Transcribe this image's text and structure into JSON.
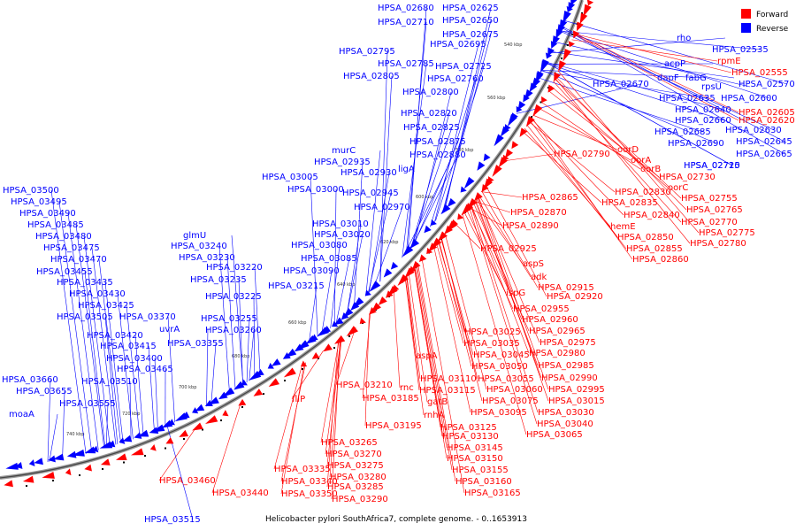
{
  "caption": "Helicobacter pylori SouthAfrica7, complete genome. - 0..1653913",
  "legend": [
    {
      "label": "Forward",
      "color": "#ff0000"
    },
    {
      "label": "Reverse",
      "color": "#0000ff"
    }
  ],
  "kbp_marks": [
    "540 kbp",
    "560 kbp",
    "580 kbp",
    "600 kbp",
    "620 kbp",
    "640 kbp",
    "660 kbp",
    "680 kbp",
    "700 kbp",
    "720 kbp",
    "740 kbp"
  ],
  "blue_labels": [
    {
      "text": "HPSA_02680"
    },
    {
      "text": "HPSA_02625"
    },
    {
      "text": "HPSA_02650"
    },
    {
      "text": "HPSA_02710"
    },
    {
      "text": "HPSA_02675"
    },
    {
      "text": "HPSA_02695"
    },
    {
      "text": "HPSA_02795"
    },
    {
      "text": "HPSA_02785"
    },
    {
      "text": "HPSA_02725"
    },
    {
      "text": "HPSA_02805"
    },
    {
      "text": "HPSA_02760"
    },
    {
      "text": "HPSA_02800"
    },
    {
      "text": "HPSA_02820"
    },
    {
      "text": "HPSA_02825"
    },
    {
      "text": "HPSA_02875"
    },
    {
      "text": "murC"
    },
    {
      "text": "HPSA_02880"
    },
    {
      "text": "HPSA_02935"
    },
    {
      "text": "HPSA_02930"
    },
    {
      "text": "ligA"
    },
    {
      "text": "HPSA_03005"
    },
    {
      "text": "HPSA_03000"
    },
    {
      "text": "HPSA_02945"
    },
    {
      "text": "HPSA_02970"
    },
    {
      "text": "HPSA_03010"
    },
    {
      "text": "HPSA_03020"
    },
    {
      "text": "HPSA_03080"
    },
    {
      "text": "HPSA_03085"
    },
    {
      "text": "HPSA_03090"
    },
    {
      "text": "glmU"
    },
    {
      "text": "HPSA_03240"
    },
    {
      "text": "HPSA_03230"
    },
    {
      "text": "HPSA_03220"
    },
    {
      "text": "HPSA_03235"
    },
    {
      "text": "HPSA_03215"
    },
    {
      "text": "HPSA_03225"
    },
    {
      "text": "HPSA_03255"
    },
    {
      "text": "HPSA_03260"
    },
    {
      "text": "uvrA"
    },
    {
      "text": "HPSA_03355"
    },
    {
      "text": "HPSA_03370"
    },
    {
      "text": "HPSA_03500"
    },
    {
      "text": "HPSA_03495"
    },
    {
      "text": "HPSA_03490"
    },
    {
      "text": "HPSA_03485"
    },
    {
      "text": "HPSA_03480"
    },
    {
      "text": "HPSA_03475"
    },
    {
      "text": "HPSA_03470"
    },
    {
      "text": "HPSA_03455"
    },
    {
      "text": "HPSA_03435"
    },
    {
      "text": "HPSA_03430"
    },
    {
      "text": "HPSA_03425"
    },
    {
      "text": "HPSA_03505"
    },
    {
      "text": "HPSA_03420"
    },
    {
      "text": "HPSA_03415"
    },
    {
      "text": "HPSA_03400"
    },
    {
      "text": "HPSA_03465"
    },
    {
      "text": "HPSA_03510"
    },
    {
      "text": "HPSA_03660"
    },
    {
      "text": "HPSA_03655"
    },
    {
      "text": "HPSA_03555"
    },
    {
      "text": "moaA"
    },
    {
      "text": "HPSA_03515"
    },
    {
      "text": "rho"
    },
    {
      "text": "HPSA_02535"
    },
    {
      "text": "acpP"
    },
    {
      "text": "dapF"
    },
    {
      "text": "fabG"
    },
    {
      "text": "rpsU"
    },
    {
      "text": "HPSA_02570"
    },
    {
      "text": "HPSA_02670"
    },
    {
      "text": "HPSA_02635"
    },
    {
      "text": "HPSA_02600"
    },
    {
      "text": "HPSA_02640"
    },
    {
      "text": "HPSA_02660"
    },
    {
      "text": "HPSA_02630"
    },
    {
      "text": "HPSA_02685"
    },
    {
      "text": "HPSA_02645"
    },
    {
      "text": "HPSA_02690"
    },
    {
      "text": "HPSA_02665"
    },
    {
      "text": "HPSA_02715"
    },
    {
      "text": "HPSA_02720"
    }
  ],
  "red_labels": [
    {
      "text": "rpmE"
    },
    {
      "text": "HPSA_02555"
    },
    {
      "text": "HPSA_02605"
    },
    {
      "text": "HPSA_02620"
    },
    {
      "text": "oorD"
    },
    {
      "text": "HPSA_02790"
    },
    {
      "text": "oorA"
    },
    {
      "text": "oorB"
    },
    {
      "text": "HPSA_02730"
    },
    {
      "text": "oorC"
    },
    {
      "text": "HPSA_02865"
    },
    {
      "text": "HPSA_02830"
    },
    {
      "text": "HPSA_02835"
    },
    {
      "text": "HPSA_02755"
    },
    {
      "text": "HPSA_02765"
    },
    {
      "text": "HPSA_02870"
    },
    {
      "text": "HPSA_02840"
    },
    {
      "text": "HPSA_02770"
    },
    {
      "text": "HPSA_02890"
    },
    {
      "text": "hemE"
    },
    {
      "text": "HPSA_02775"
    },
    {
      "text": "HPSA_02850"
    },
    {
      "text": "HPSA_02780"
    },
    {
      "text": "HPSA_02855"
    },
    {
      "text": "HPSA_02860"
    },
    {
      "text": "HPSA_02925"
    },
    {
      "text": "aspS"
    },
    {
      "text": "adk"
    },
    {
      "text": "HPSA_02915"
    },
    {
      "text": "ispG"
    },
    {
      "text": "HPSA_02920"
    },
    {
      "text": "HPSA_02955"
    },
    {
      "text": "HPSA_02960"
    },
    {
      "text": "HPSA_03025"
    },
    {
      "text": "HPSA_02965"
    },
    {
      "text": "HPSA_03035"
    },
    {
      "text": "HPSA_02975"
    },
    {
      "text": "aspA"
    },
    {
      "text": "HPSA_03045"
    },
    {
      "text": "HPSA_02980"
    },
    {
      "text": "HPSA_03050"
    },
    {
      "text": "HPSA_02985"
    },
    {
      "text": "HPSA_03055"
    },
    {
      "text": "HPSA_02990"
    },
    {
      "text": "HPSA_03110"
    },
    {
      "text": "HPSA_03060"
    },
    {
      "text": "HPSA_02995"
    },
    {
      "text": "HPSA_03210"
    },
    {
      "text": "rnc"
    },
    {
      "text": "HPSA_03115"
    },
    {
      "text": "HPSA_03075"
    },
    {
      "text": "HPSA_03015"
    },
    {
      "text": "HPSA_03185"
    },
    {
      "text": "gatB"
    },
    {
      "text": "HPSA_03095"
    },
    {
      "text": "HPSA_03030"
    },
    {
      "text": "fliP"
    },
    {
      "text": "rnhA"
    },
    {
      "text": "HPSA_03040"
    },
    {
      "text": "HPSA_03195"
    },
    {
      "text": "HPSA_03125"
    },
    {
      "text": "HPSA_03065"
    },
    {
      "text": "HPSA_03130"
    },
    {
      "text": "HPSA_03145"
    },
    {
      "text": "HPSA_03265"
    },
    {
      "text": "HPSA_03150"
    },
    {
      "text": "HPSA_03270"
    },
    {
      "text": "HPSA_03275"
    },
    {
      "text": "HPSA_03155"
    },
    {
      "text": "HPSA_03335"
    },
    {
      "text": "HPSA_03280"
    },
    {
      "text": "HPSA_03160"
    },
    {
      "text": "HPSA_03460"
    },
    {
      "text": "HPSA_03340"
    },
    {
      "text": "HPSA_03285"
    },
    {
      "text": "HPSA_03165"
    },
    {
      "text": "HPSA_03440"
    },
    {
      "text": "HPSA_03350"
    },
    {
      "text": "HPSA_03290"
    }
  ]
}
